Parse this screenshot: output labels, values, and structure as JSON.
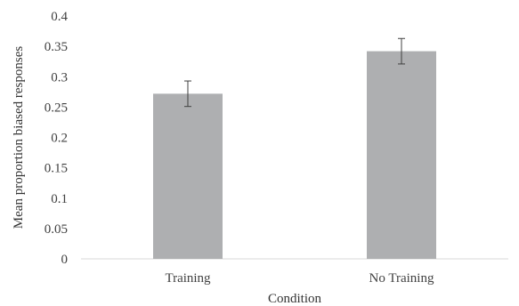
{
  "chart_data": {
    "type": "bar",
    "title": "",
    "xlabel": "Condition",
    "ylabel": "Mean proportion biased responses",
    "categories": [
      "Training",
      "No Training"
    ],
    "values": [
      0.272,
      0.342
    ],
    "errors": [
      0.021,
      0.021
    ],
    "ylim": [
      0,
      0.4
    ],
    "yticks": [
      0,
      0.05,
      0.1,
      0.15,
      0.2,
      0.25,
      0.3,
      0.35,
      0.4
    ],
    "ytick_labels": [
      "0",
      "0.05",
      "0.1",
      "0.15",
      "0.2",
      "0.25",
      "0.3",
      "0.35",
      "0.4"
    ],
    "grid": false,
    "legend": "none",
    "colors": {
      "bar": "#aeafb1",
      "axis": "#d9d9d9",
      "error_bar": "#404040",
      "text": "#404040"
    }
  }
}
